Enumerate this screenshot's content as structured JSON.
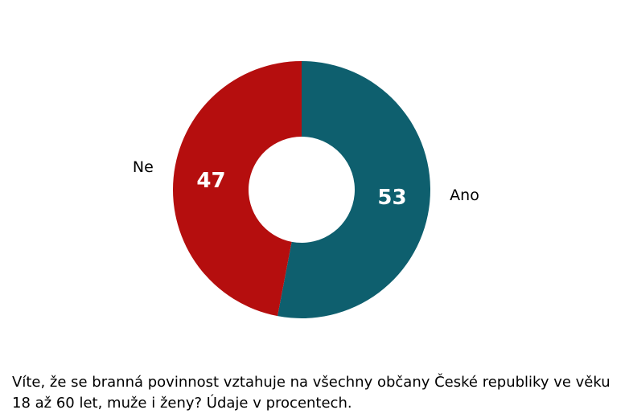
{
  "chart_data": {
    "type": "donut",
    "categories": [
      "Ano",
      "Ne"
    ],
    "values": [
      53,
      47
    ],
    "colors": [
      "#0e5f6e",
      "#b50e0e"
    ],
    "caption": "Víte, že se branná povinnost vztahuje na všechny občany České republiky ve věku 18 až 60 let, muže i ženy? Údaje v procentech."
  }
}
